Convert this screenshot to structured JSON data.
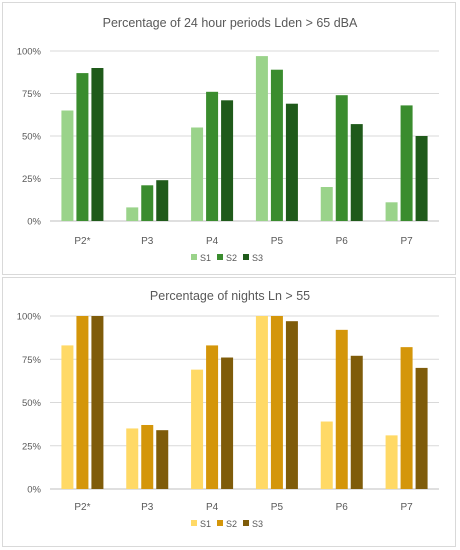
{
  "chart_data": [
    {
      "type": "bar",
      "title": "Percentage of 24 hour periods Lden > 65 dBA",
      "categories": [
        "P2*",
        "P3",
        "P4",
        "P5",
        "P6",
        "P7"
      ],
      "yticks": [
        "0%",
        "25%",
        "50%",
        "75%",
        "100%"
      ],
      "ylim": [
        0,
        100
      ],
      "grid": true,
      "legend_position": "bottom",
      "series": [
        {
          "name": "S1",
          "color": "#9ad38a",
          "values": [
            65,
            8,
            55,
            97,
            20,
            11
          ]
        },
        {
          "name": "S2",
          "color": "#3a8c2e",
          "values": [
            87,
            21,
            76,
            89,
            74,
            68
          ]
        },
        {
          "name": "S3",
          "color": "#1f5a1a",
          "values": [
            90,
            24,
            71,
            69,
            57,
            50
          ]
        }
      ]
    },
    {
      "type": "bar",
      "title": "Percentage of nights Ln > 55",
      "categories": [
        "P2*",
        "P3",
        "P4",
        "P5",
        "P6",
        "P7"
      ],
      "yticks": [
        "0%",
        "25%",
        "50%",
        "75%",
        "100%"
      ],
      "ylim": [
        0,
        100
      ],
      "grid": true,
      "legend_position": "bottom",
      "series": [
        {
          "name": "S1",
          "color": "#ffd966",
          "values": [
            83,
            35,
            69,
            100,
            39,
            31
          ]
        },
        {
          "name": "S2",
          "color": "#d4960a",
          "values": [
            100,
            37,
            83,
            100,
            92,
            82
          ]
        },
        {
          "name": "S3",
          "color": "#7f5c0a",
          "values": [
            100,
            34,
            76,
            97,
            77,
            70
          ]
        }
      ]
    }
  ]
}
